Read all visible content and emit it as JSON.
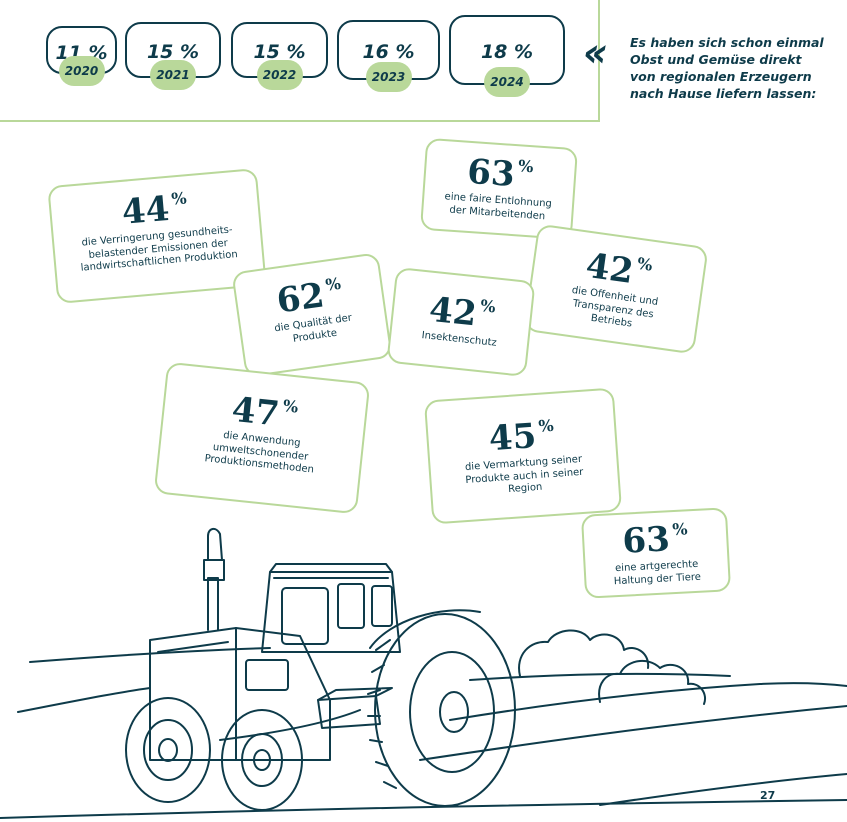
{
  "years": [
    {
      "pct": "11 %",
      "year": "2020"
    },
    {
      "pct": "15 %",
      "year": "2021"
    },
    {
      "pct": "15 %",
      "year": "2022"
    },
    {
      "pct": "16 %",
      "year": "2023"
    },
    {
      "pct": "18 %",
      "year": "2024"
    }
  ],
  "quote_icon": "guillemet-left-icon",
  "intro_text": "Es haben sich schon einmal Obst und Gemüse direkt von regionalen Erzeugern nach Hause liefern lassen:",
  "stats": [
    {
      "value": "44",
      "sign": "%",
      "label": "die Verringerung gesundheits-belastender Emissionen der landwirtschaftlichen Produktion"
    },
    {
      "value": "63",
      "sign": "%",
      "label": "eine faire Entlohnung der Mitarbeitenden"
    },
    {
      "value": "42",
      "sign": "%",
      "label": "die Offenheit und Transparenz des Betriebs"
    },
    {
      "value": "62",
      "sign": "%",
      "label": "die Qualität der Produkte"
    },
    {
      "value": "42",
      "sign": "%",
      "label": "Insektenschutz"
    },
    {
      "value": "47",
      "sign": "%",
      "label": "die Anwendung umweltschonender Produktionsmethoden"
    },
    {
      "value": "45",
      "sign": "%",
      "label": "die Vermarktung seiner Produkte auch in seiner Region"
    },
    {
      "value": "63",
      "sign": "%",
      "label": "eine artgerechte Haltung der Tiere"
    }
  ],
  "illustration": "tractor-field-icon",
  "page_number": "27",
  "colors": {
    "navy": "#0e3b4a",
    "green": "#b9d89a"
  }
}
